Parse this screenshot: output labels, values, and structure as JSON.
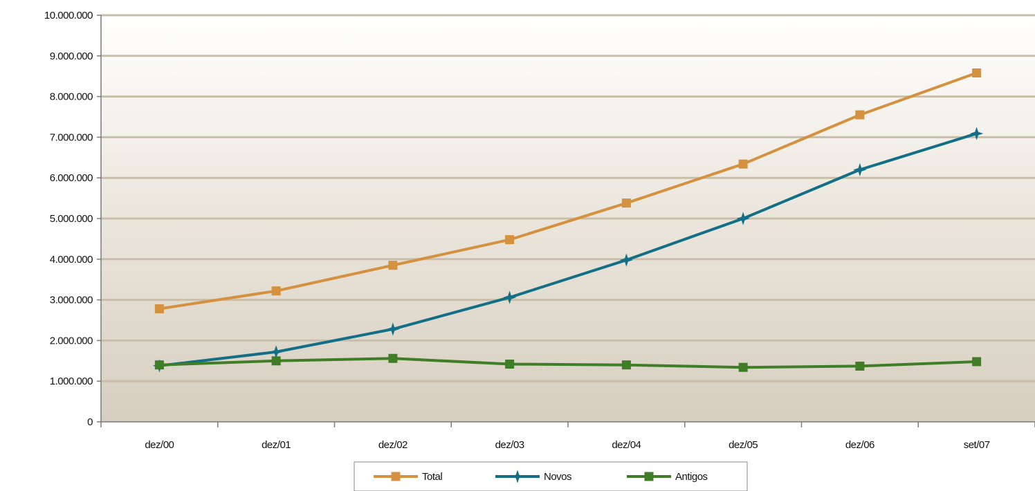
{
  "chart_data": {
    "type": "line",
    "categories": [
      "dez/00",
      "dez/01",
      "dez/02",
      "dez/03",
      "dez/04",
      "dez/05",
      "dez/06",
      "set/07"
    ],
    "series": [
      {
        "name": "Total",
        "color": "#d4913f",
        "marker": "square",
        "values": [
          2780000,
          3220000,
          3850000,
          4480000,
          5380000,
          6340000,
          7550000,
          8580000
        ]
      },
      {
        "name": "Novos",
        "color": "#136f86",
        "marker": "star",
        "values": [
          1380000,
          1720000,
          2280000,
          3060000,
          3980000,
          5000000,
          6200000,
          7090000
        ]
      },
      {
        "name": "Antigos",
        "color": "#3f7d26",
        "marker": "square",
        "values": [
          1400000,
          1500000,
          1560000,
          1420000,
          1400000,
          1340000,
          1370000,
          1480000
        ]
      }
    ],
    "ylim": [
      0,
      10000000
    ],
    "yticks": [
      0,
      1000000,
      2000000,
      3000000,
      4000000,
      5000000,
      6000000,
      7000000,
      8000000,
      9000000,
      10000000
    ],
    "ytick_labels": [
      "0",
      "1.000.000",
      "2.000.000",
      "3.000.000",
      "4.000.000",
      "5.000.000",
      "6.000.000",
      "7.000.000",
      "8.000.000",
      "9.000.000",
      "10.000.000"
    ],
    "grid": true,
    "legend_position": "bottom-center"
  }
}
